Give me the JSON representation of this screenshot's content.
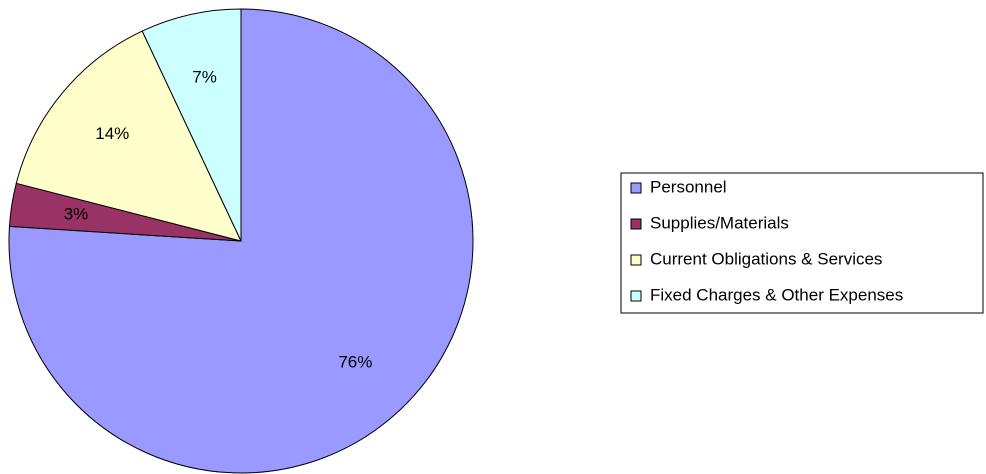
{
  "chart_data": {
    "type": "pie",
    "categories": [
      "Personnel",
      "Supplies/Materials",
      "Current Obligations & Services",
      "Fixed Charges & Other Expenses"
    ],
    "values": [
      76,
      3,
      14,
      7
    ],
    "value_labels": [
      "76%",
      "3%",
      "14%",
      "7%"
    ],
    "colors": [
      "#9999ff",
      "#993366",
      "#ffffcc",
      "#ccffff"
    ],
    "legend": "right"
  }
}
